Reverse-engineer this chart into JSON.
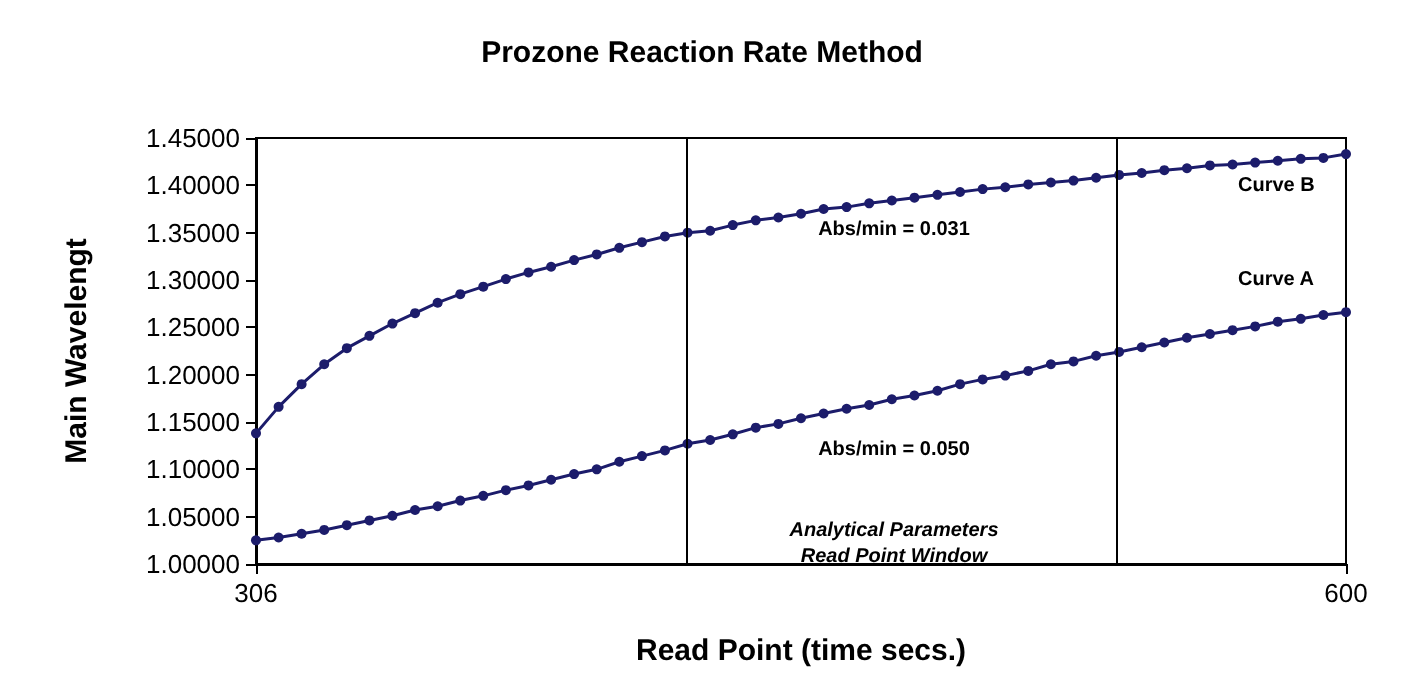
{
  "chart_data": {
    "type": "line",
    "title": "Prozone Reaction Rate Method",
    "xlabel": "Read Point (time secs.)",
    "ylabel": "Main Wavelengt",
    "xlim": [
      306,
      600
    ],
    "xticks": [
      306,
      600
    ],
    "ylim": [
      1,
      1.45
    ],
    "yticks": [
      {
        "value": 1,
        "label": "1.00000"
      },
      {
        "value": 1.05,
        "label": "1.05000"
      },
      {
        "value": 1.1,
        "label": "1.10000"
      },
      {
        "value": 1.15,
        "label": "1.15000"
      },
      {
        "value": 1.2,
        "label": "1.20000"
      },
      {
        "value": 1.25,
        "label": "1.25000"
      },
      {
        "value": 1.3,
        "label": "1.30000"
      },
      {
        "value": 1.35,
        "label": "1.35000"
      },
      {
        "value": 1.4,
        "label": "1.40000"
      },
      {
        "value": 1.45,
        "label": "1.45000"
      }
    ],
    "x": [
      306,
      312.1,
      318.3,
      324.4,
      330.5,
      336.6,
      342.8,
      348.9,
      355,
      361.1,
      367.3,
      373.4,
      379.5,
      385.6,
      391.8,
      397.9,
      404,
      410.1,
      416.3,
      422.4,
      428.5,
      434.6,
      440.8,
      446.9,
      453,
      459.1,
      465.3,
      471.4,
      477.5,
      483.6,
      489.8,
      495.9,
      502,
      508.1,
      514.3,
      520.4,
      526.5,
      532.6,
      538.8,
      544.9,
      551,
      557.1,
      563.3,
      569.4,
      575.5,
      581.6,
      587.8,
      593.9,
      600
    ],
    "series": [
      {
        "name": "Curve B",
        "color": "#1c1c6b",
        "values": [
          1.138,
          1.166,
          1.19,
          1.211,
          1.228,
          1.241,
          1.254,
          1.265,
          1.276,
          1.285,
          1.293,
          1.301,
          1.308,
          1.314,
          1.321,
          1.327,
          1.334,
          1.34,
          1.346,
          1.35,
          1.352,
          1.358,
          1.363,
          1.366,
          1.37,
          1.375,
          1.377,
          1.381,
          1.384,
          1.387,
          1.39,
          1.393,
          1.396,
          1.398,
          1.401,
          1.403,
          1.405,
          1.408,
          1.411,
          1.413,
          1.416,
          1.418,
          1.421,
          1.422,
          1.424,
          1.426,
          1.428,
          1.429,
          1.433
        ]
      },
      {
        "name": "Curve A",
        "color": "#1c1c6b",
        "values": [
          1.025,
          1.028,
          1.032,
          1.036,
          1.041,
          1.046,
          1.051,
          1.057,
          1.061,
          1.067,
          1.072,
          1.078,
          1.083,
          1.089,
          1.095,
          1.1,
          1.108,
          1.114,
          1.12,
          1.127,
          1.131,
          1.137,
          1.144,
          1.148,
          1.154,
          1.159,
          1.164,
          1.168,
          1.174,
          1.178,
          1.183,
          1.19,
          1.195,
          1.199,
          1.204,
          1.211,
          1.214,
          1.22,
          1.224,
          1.229,
          1.234,
          1.239,
          1.243,
          1.247,
          1.251,
          1.256,
          1.259,
          1.263,
          1.266
        ]
      }
    ],
    "ref_lines": [
      {
        "axis": "x",
        "value": 422,
        "color": "#000000"
      },
      {
        "axis": "x",
        "value": 538,
        "color": "#000000"
      }
    ],
    "annotations": [
      "Abs/min = 0.031",
      "Abs/min = 0.050",
      "Analytical Parameters\nRead Point Window"
    ],
    "marker": "circle",
    "line_style": "solid",
    "grid": false,
    "legend": false
  }
}
